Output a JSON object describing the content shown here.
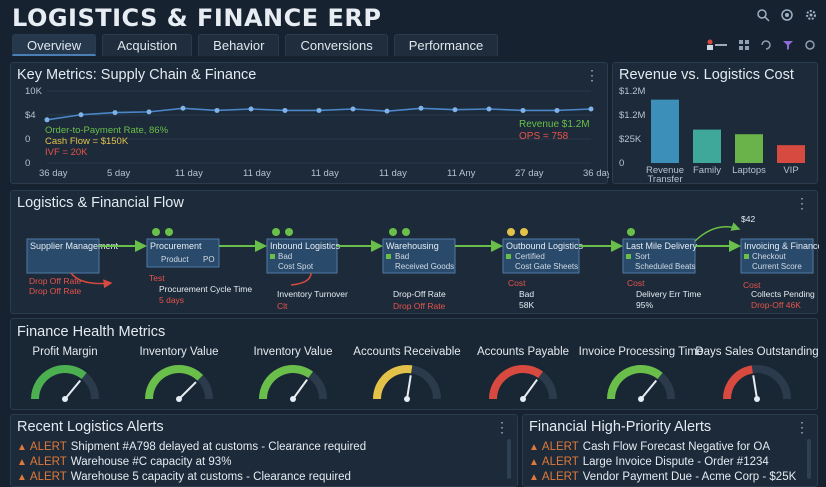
{
  "app": {
    "title": "LOGISTICS & FINANCE ERP"
  },
  "tabs": [
    {
      "label": "Overview",
      "active": true
    },
    {
      "label": "Acquistion"
    },
    {
      "label": "Behavior"
    },
    {
      "label": "Conversions"
    },
    {
      "label": "Performance"
    }
  ],
  "key_metrics": {
    "title": "Key Metrics: Supply Chain & Finance",
    "y_ticks": [
      "10K",
      "$4",
      "0",
      "0"
    ],
    "x_ticks": [
      "36 day",
      "5 day",
      "11 day",
      "11 day",
      "11 day",
      "11 day",
      "11 Any",
      "27 day",
      "36 day"
    ],
    "annotations_left": [
      "Order-to-Payment Rate, 86%",
      "Cash Flow = $150K",
      "IVF = 20K"
    ],
    "annotations_right": [
      "Revenue $1.2M",
      "OPS = 758"
    ]
  },
  "chart_data": [
    {
      "type": "line",
      "title": "Key Metrics: Supply Chain & Finance",
      "series": [
        {
          "values": [
            60,
            67,
            70,
            71,
            76,
            73,
            75,
            73,
            73,
            75,
            72,
            76,
            74,
            75,
            73,
            73,
            75
          ]
        }
      ],
      "ylim": [
        0,
        100
      ]
    },
    {
      "type": "bar",
      "title": "Revenue vs. Logistics Cost",
      "categories": [
        "Revenue Transfer",
        "Family",
        "Laptops",
        "VIP"
      ],
      "values": [
        1.1,
        0.58,
        0.5,
        0.31
      ],
      "colors": [
        "#3c8fb8",
        "#3fa89a",
        "#6ab34a",
        "#d64a3f"
      ],
      "y_ticks": [
        "$1.2M",
        "$1.2M",
        "$25K",
        "0"
      ],
      "ylim": [
        0,
        1.25
      ]
    }
  ],
  "flow": {
    "title": "Logistics & Financial Flow",
    "nodes": [
      {
        "label": "Supplier Management"
      },
      {
        "label": "Procurement",
        "sub": [
          "Product",
          "PO"
        ]
      },
      {
        "label": "Inbound Logistics",
        "sub": [
          "Bad",
          "Cost Spot"
        ]
      },
      {
        "label": "Warehousing",
        "sub": [
          "Bad",
          "Received Goods"
        ]
      },
      {
        "label": "Outbound Logistics",
        "sub": [
          "Certified",
          "Cost Gate Sheets"
        ]
      },
      {
        "label": "Last Mile Delivery",
        "sub": [
          "Sort",
          "Scheduled Beats"
        ]
      },
      {
        "label": "Invoicing & Finance",
        "sub": [
          "Checkout",
          "Current Score"
        ]
      }
    ],
    "red_labels": [
      "Drop Off Rate",
      "Drop Off Rate",
      "Test",
      "Inventory Turnover",
      "Drop-Off Rate",
      "Drop Off Rate",
      "Cost",
      "Delivery Err Time",
      "Cost",
      "Collects Pending",
      "Drop-Off 46K"
    ],
    "notes": [
      "Procurement Cycle Time",
      "5 days",
      "Clt",
      "Cost",
      "Bad",
      "58K",
      "95%",
      "$42"
    ]
  },
  "finance_health": {
    "title": "Finance Health Metrics",
    "gauges": [
      {
        "label": "Profit Margin",
        "value": 0.72,
        "color": "#4caf50"
      },
      {
        "label": "Inventory Value",
        "value": 0.75,
        "color": "#6abf4b"
      },
      {
        "label": "Inventory Value",
        "value": 0.7,
        "color": "#6abf4b"
      },
      {
        "label": "Accounts Receivable",
        "value": 0.55,
        "color": "#e3c24a"
      },
      {
        "label": "Accounts Payable",
        "value": 0.7,
        "color": "#d84a3f"
      },
      {
        "label": "Invoice Processing Time",
        "value": 0.72,
        "color": "#6abf4b"
      },
      {
        "label": "Days Sales Outstanding",
        "value": 0.45,
        "color": "#d84a3f"
      }
    ]
  },
  "logistics_alerts": {
    "title": "Recent Logistics Alerts",
    "items": [
      {
        "tag": "ALERT",
        "text": "Shipment #A798 delayed at customs - Clearance required"
      },
      {
        "tag": "ALERT",
        "text": "Warehouse #C capacity at 93%"
      },
      {
        "tag": "ALERT",
        "text": "Warehouse 5 capacity at customs - Clearance required"
      }
    ]
  },
  "finance_alerts": {
    "title": "Financial High-Priority Alerts",
    "items": [
      {
        "tag": "ALERT",
        "text": "Cash Flow Forecast Negative for OA"
      },
      {
        "tag": "ALERT",
        "text": "Large Invoice Dispute - Order #1234"
      },
      {
        "tag": "ALERT",
        "text": "Vendor Payment Due - Acme Corp - $25K"
      }
    ]
  },
  "icons": [
    "search-icon",
    "settings-icon",
    "gear-icon",
    "user-icon",
    "grid-icon",
    "refresh-icon",
    "filter-icon"
  ]
}
